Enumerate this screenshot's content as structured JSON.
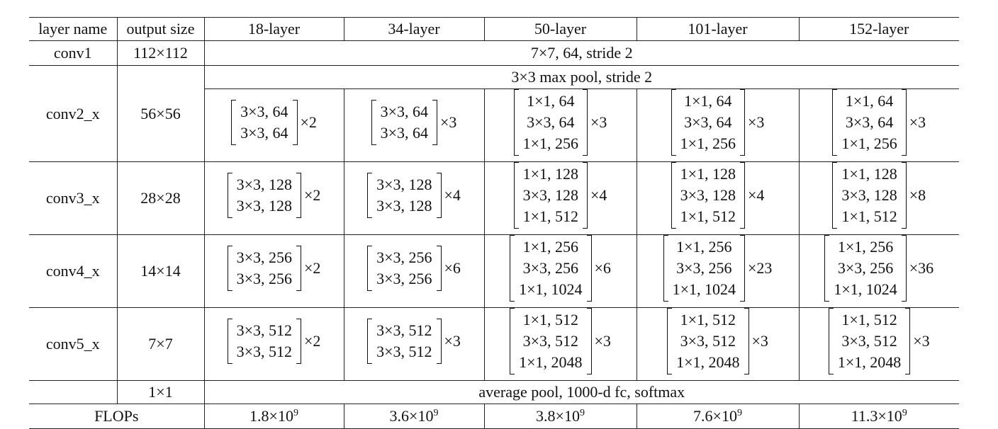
{
  "table": {
    "headers": [
      "layer name",
      "output size",
      "18-layer",
      "34-layer",
      "50-layer",
      "101-layer",
      "152-layer"
    ],
    "conv1": {
      "name": "conv1",
      "output": "112×112",
      "spec": "7×7, 64, stride 2"
    },
    "pool": {
      "spec": "3×3 max pool, stride 2"
    },
    "stages": [
      {
        "name": "conv2_x",
        "output": "56×56",
        "blocks": [
          {
            "lines": [
              "3×3, 64",
              "3×3, 64"
            ],
            "repeat": "×2"
          },
          {
            "lines": [
              "3×3, 64",
              "3×3, 64"
            ],
            "repeat": "×3"
          },
          {
            "lines": [
              "1×1, 64",
              "3×3, 64",
              "1×1, 256"
            ],
            "repeat": "×3"
          },
          {
            "lines": [
              "1×1, 64",
              "3×3, 64",
              "1×1, 256"
            ],
            "repeat": "×3"
          },
          {
            "lines": [
              "1×1, 64",
              "3×3, 64",
              "1×1, 256"
            ],
            "repeat": "×3"
          }
        ]
      },
      {
        "name": "conv3_x",
        "output": "28×28",
        "blocks": [
          {
            "lines": [
              "3×3, 128",
              "3×3, 128"
            ],
            "repeat": "×2"
          },
          {
            "lines": [
              "3×3, 128",
              "3×3, 128"
            ],
            "repeat": "×4"
          },
          {
            "lines": [
              "1×1, 128",
              "3×3, 128",
              "1×1, 512"
            ],
            "repeat": "×4"
          },
          {
            "lines": [
              "1×1, 128",
              "3×3, 128",
              "1×1, 512"
            ],
            "repeat": "×4"
          },
          {
            "lines": [
              "1×1, 128",
              "3×3, 128",
              "1×1, 512"
            ],
            "repeat": "×8"
          }
        ]
      },
      {
        "name": "conv4_x",
        "output": "14×14",
        "blocks": [
          {
            "lines": [
              "3×3, 256",
              "3×3, 256"
            ],
            "repeat": "×2"
          },
          {
            "lines": [
              "3×3, 256",
              "3×3, 256"
            ],
            "repeat": "×6"
          },
          {
            "lines": [
              "1×1, 256",
              "3×3, 256",
              "1×1, 1024"
            ],
            "repeat": "×6"
          },
          {
            "lines": [
              "1×1, 256",
              "3×3, 256",
              "1×1, 1024"
            ],
            "repeat": "×23"
          },
          {
            "lines": [
              "1×1, 256",
              "3×3, 256",
              "1×1, 1024"
            ],
            "repeat": "×36"
          }
        ]
      },
      {
        "name": "conv5_x",
        "output": "7×7",
        "blocks": [
          {
            "lines": [
              "3×3, 512",
              "3×3, 512"
            ],
            "repeat": "×2"
          },
          {
            "lines": [
              "3×3, 512",
              "3×3, 512"
            ],
            "repeat": "×3"
          },
          {
            "lines": [
              "1×1, 512",
              "3×3, 512",
              "1×1, 2048"
            ],
            "repeat": "×3"
          },
          {
            "lines": [
              "1×1, 512",
              "3×3, 512",
              "1×1, 2048"
            ],
            "repeat": "×3"
          },
          {
            "lines": [
              "1×1, 512",
              "3×3, 512",
              "1×1, 2048"
            ],
            "repeat": "×3"
          }
        ]
      }
    ],
    "final": {
      "output": "1×1",
      "spec": "average pool, 1000-d fc, softmax"
    },
    "flops": {
      "label": "FLOPs",
      "values": [
        {
          "mantissa": "1.8×10",
          "exp": "9"
        },
        {
          "mantissa": "3.6×10",
          "exp": "9"
        },
        {
          "mantissa": "3.8×10",
          "exp": "9"
        },
        {
          "mantissa": "7.6×10",
          "exp": "9"
        },
        {
          "mantissa": "11.3×10",
          "exp": "9"
        }
      ]
    }
  }
}
